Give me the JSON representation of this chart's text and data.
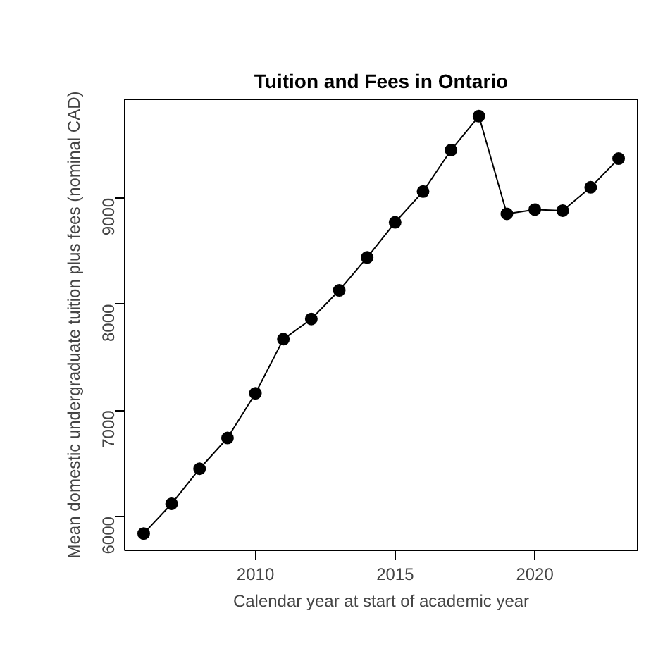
{
  "chart_data": {
    "type": "line",
    "title": "Tuition and Fees in Ontario",
    "xlabel": "Calendar year at start of academic year",
    "ylabel": "Mean domestic undergraduate tuition plus fees (nominal CAD)",
    "x": [
      2006,
      2007,
      2008,
      2009,
      2010,
      2011,
      2012,
      2013,
      2014,
      2015,
      2016,
      2017,
      2018,
      2019,
      2020,
      2021,
      2022,
      2023
    ],
    "series": [
      {
        "color": "#000000",
        "values": [
          5840,
          6120,
          6450,
          6740,
          7160,
          7670,
          7860,
          8130,
          8440,
          8770,
          9060,
          9450,
          9770,
          8850,
          8890,
          8880,
          9100,
          9370
        ]
      }
    ],
    "xlim": [
      2005.32,
      2023.68
    ],
    "ylim": [
      5682,
      9928
    ],
    "xticks": [
      2010,
      2015,
      2020
    ],
    "yticks": [
      6000,
      7000,
      8000,
      9000
    ],
    "marker": "circle",
    "line_style": "solid"
  }
}
